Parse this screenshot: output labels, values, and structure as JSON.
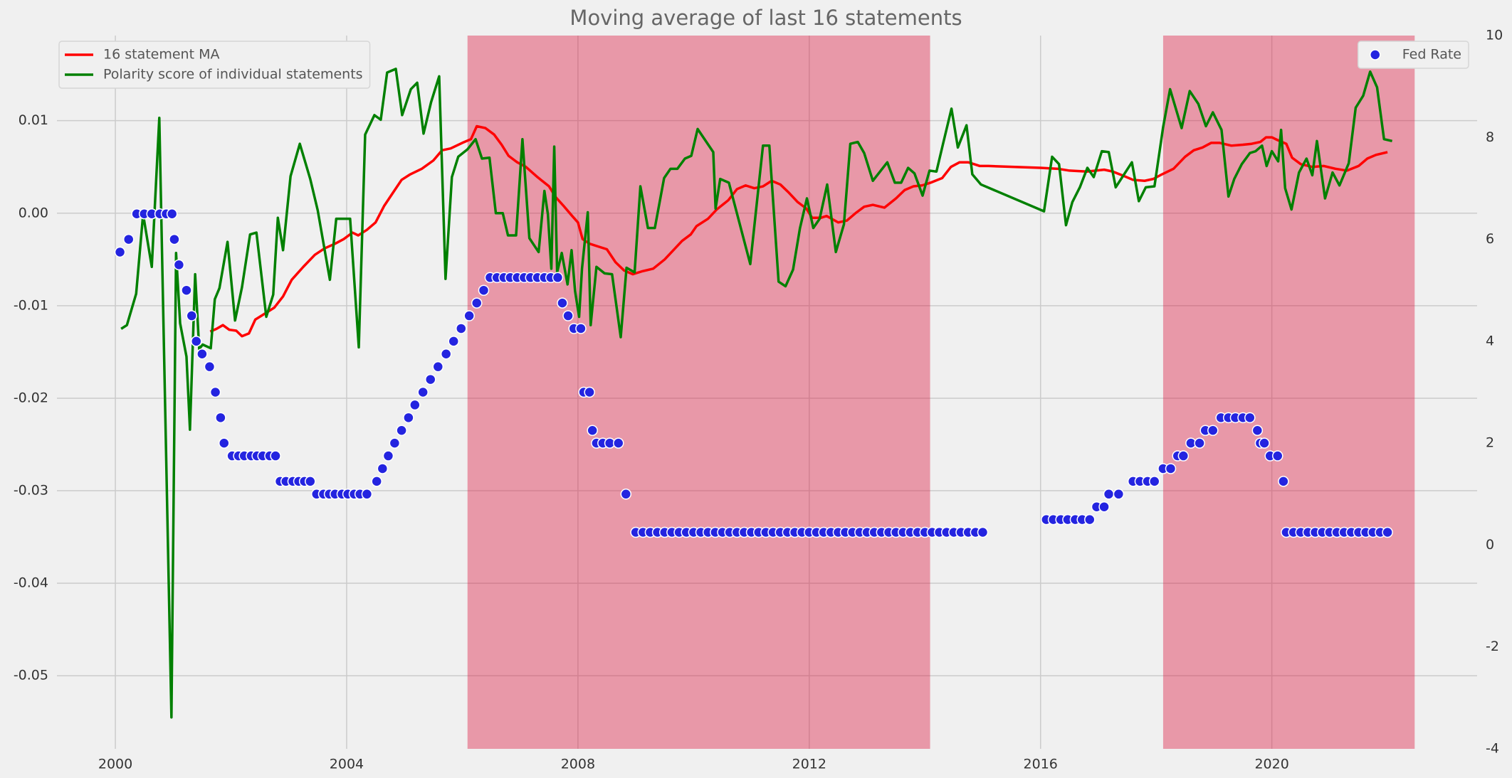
{
  "chart_data": {
    "type": "line",
    "title": "Moving average of last 16 statements",
    "xlim": [
      1998.99,
      2023.55
    ],
    "xticks": [
      2000,
      2004,
      2008,
      2012,
      2016,
      2020
    ],
    "ylim": [
      -0.0579,
      0.0192
    ],
    "yticks": [
      0.01,
      {
        "value": 0,
        "label": "0.00"
      },
      -0.01,
      -0.02,
      -0.03,
      -0.04,
      -0.05
    ],
    "y2lim": [
      -4,
      10
    ],
    "y2ticks": [
      10,
      8,
      6,
      4,
      2,
      0,
      -2,
      -4
    ],
    "grid": true,
    "legend": {
      "y": "upper left",
      "y2": "upper right"
    },
    "spans": [
      {
        "start": 2006.09,
        "end": 2014.09
      },
      {
        "start": 2018.12,
        "end": 2022.47
      }
    ],
    "span_color": "#dc143c",
    "span_alpha": 0.4,
    "series": [
      {
        "name": "16 statement MA",
        "type": "line",
        "color": "#ff0000",
        "x": [
          2001.64,
          2001.75,
          2001.86,
          2001.97,
          2002.09,
          2002.19,
          2002.31,
          2002.42,
          2002.6,
          2002.75,
          2002.9,
          2003.05,
          2003.25,
          2003.45,
          2003.62,
          2003.8,
          2003.95,
          2004.1,
          2004.2,
          2004.35,
          2004.5,
          2004.65,
          2004.8,
          2004.95,
          2005.1,
          2005.3,
          2005.5,
          2005.65,
          2005.8,
          2006,
          2006.15,
          2006.25,
          2006.4,
          2006.55,
          2006.68,
          2006.8,
          2006.95,
          2007.1,
          2007.3,
          2007.5,
          2007.62,
          2007.75,
          2007.9,
          2008,
          2008.08,
          2008.2,
          2008.35,
          2008.5,
          2008.65,
          2008.8,
          2008.95,
          2009.1,
          2009.3,
          2009.5,
          2009.65,
          2009.8,
          2009.95,
          2010.05,
          2010.25,
          2010.4,
          2010.6,
          2010.75,
          2010.9,
          2011.05,
          2011.2,
          2011.35,
          2011.5,
          2011.65,
          2011.8,
          2011.95,
          2012.05,
          2012.2,
          2012.3,
          2012.5,
          2012.65,
          2012.8,
          2012.95,
          2013.1,
          2013.3,
          2013.5,
          2013.65,
          2013.8,
          2013.95,
          2014.1,
          2014.3,
          2014.45,
          2014.6,
          2014.75,
          2014.95,
          2015.1,
          2016,
          2016.3,
          2016.5,
          2016.8,
          2017.1,
          2017.25,
          2017.45,
          2017.6,
          2017.8,
          2017.95,
          2018.1,
          2018.3,
          2018.5,
          2018.65,
          2018.8,
          2018.95,
          2019.1,
          2019.3,
          2019.5,
          2019.65,
          2019.8,
          2019.9,
          2020,
          2020.1,
          2020.25,
          2020.35,
          2020.5,
          2020.7,
          2020.9,
          2021.1,
          2021.3,
          2021.5,
          2021.65,
          2021.8,
          2022
        ],
        "values": [
          -0.0128,
          -0.0125,
          -0.0121,
          -0.0126,
          -0.0127,
          -0.0133,
          -0.013,
          -0.0115,
          -0.0108,
          -0.0102,
          -0.009,
          -0.0072,
          -0.0058,
          -0.0045,
          -0.0038,
          -0.0033,
          -0.0028,
          -0.0021,
          -0.0024,
          -0.0018,
          -0.001,
          0.0008,
          0.0022,
          0.0036,
          0.0042,
          0.0048,
          0.0057,
          0.0068,
          0.007,
          0.0076,
          0.008,
          0.0094,
          0.0092,
          0.0085,
          0.0074,
          0.0062,
          0.0055,
          0.005,
          0.0039,
          0.0029,
          0.0017,
          0.0008,
          -0.0003,
          -0.001,
          -0.0028,
          -0.0033,
          -0.0036,
          -0.0039,
          -0.0053,
          -0.0062,
          -0.0066,
          -0.0063,
          -0.006,
          -0.005,
          -0.004,
          -0.003,
          -0.0023,
          -0.0014,
          -0.0006,
          0.0004,
          0.0014,
          0.0026,
          0.003,
          0.0027,
          0.0029,
          0.0035,
          0.0031,
          0.0022,
          0.0012,
          0.0005,
          -0.0005,
          -0.0005,
          -0.0003,
          -0.001,
          -0.0008,
          0,
          0.0007,
          0.0009,
          0.0006,
          0.0016,
          0.0025,
          0.0029,
          0.003,
          0.0033,
          0.0038,
          0.005,
          0.0055,
          0.0055,
          0.0051,
          0.0051,
          0.0049,
          0.0048,
          0.0046,
          0.0045,
          0.0047,
          0.0045,
          0.004,
          0.0036,
          0.0035,
          0.0037,
          0.0042,
          0.0048,
          0.0061,
          0.0068,
          0.0071,
          0.0076,
          0.0076,
          0.0073,
          0.0074,
          0.0075,
          0.0077,
          0.0082,
          0.0082,
          0.0079,
          0.0075,
          0.006,
          0.0053,
          0.005,
          0.0051,
          0.0048,
          0.0046,
          0.0051,
          0.0059,
          0.0063,
          0.0066
        ]
      },
      {
        "name": "Polarity score of individual statements",
        "type": "line",
        "color": "#008000",
        "x": [
          2000.1,
          2000.2,
          2000.36,
          2000.48,
          2000.63,
          2000.76,
          2000.97,
          2001.05,
          2001.12,
          2001.23,
          2001.29,
          2001.38,
          2001.45,
          2001.51,
          2001.65,
          2001.72,
          2001.8,
          2001.94,
          2002.07,
          2002.19,
          2002.33,
          2002.44,
          2002.61,
          2002.73,
          2002.81,
          2002.9,
          2003.03,
          2003.19,
          2003.37,
          2003.5,
          2003.71,
          2003.82,
          2004.06,
          2004.21,
          2004.32,
          2004.48,
          2004.59,
          2004.7,
          2004.85,
          2004.96,
          2005.11,
          2005.22,
          2005.33,
          2005.46,
          2005.6,
          2005.71,
          2005.82,
          2005.93,
          2006.09,
          2006.23,
          2006.34,
          2006.47,
          2006.58,
          2006.7,
          2006.79,
          2006.93,
          2007.04,
          2007.16,
          2007.32,
          2007.42,
          2007.48,
          2007.54,
          2007.59,
          2007.64,
          2007.72,
          2007.82,
          2007.89,
          2007.95,
          2008.02,
          2008.07,
          2008.17,
          2008.22,
          2008.32,
          2008.46,
          2008.59,
          2008.74,
          2008.84,
          2008.98,
          2009.08,
          2009.21,
          2009.33,
          2009.49,
          2009.6,
          2009.72,
          2009.85,
          2009.96,
          2010.07,
          2010.34,
          2010.38,
          2010.46,
          2010.61,
          2010.98,
          2011.2,
          2011.31,
          2011.47,
          2011.59,
          2011.72,
          2011.84,
          2011.96,
          2012.07,
          2012.18,
          2012.31,
          2012.46,
          2012.6,
          2012.71,
          2012.84,
          2012.95,
          2013.1,
          2013.35,
          2013.48,
          2013.59,
          2013.71,
          2013.82,
          2013.96,
          2014.08,
          2014.2,
          2014.31,
          2014.46,
          2014.57,
          2014.72,
          2014.82,
          2014.97,
          2016.06,
          2016.2,
          2016.32,
          2016.44,
          2016.55,
          2016.68,
          2016.81,
          2016.92,
          2017.06,
          2017.18,
          2017.3,
          2017.58,
          2017.7,
          2017.82,
          2017.97,
          2018.12,
          2018.24,
          2018.44,
          2018.58,
          2018.73,
          2018.86,
          2018.98,
          2019.13,
          2019.25,
          2019.35,
          2019.48,
          2019.62,
          2019.72,
          2019.83,
          2019.91,
          2020,
          2020.11,
          2020.16,
          2020.23,
          2020.34,
          2020.47,
          2020.6,
          2020.7,
          2020.78,
          2020.92,
          2021.05,
          2021.17,
          2021.33,
          2021.45,
          2021.58,
          2021.7,
          2021.82,
          2021.94,
          2022.08
        ],
        "values": [
          -0.0125,
          -0.0121,
          -0.0087,
          -0.0001,
          -0.0058,
          0.0103,
          -0.0545,
          -0.0043,
          -0.0119,
          -0.0155,
          -0.0234,
          -0.0066,
          -0.0147,
          -0.0142,
          -0.0146,
          -0.0093,
          -0.0081,
          -0.0031,
          -0.0116,
          -0.008,
          -0.0023,
          -0.0021,
          -0.0112,
          -0.0088,
          -0.0005,
          -0.004,
          0.004,
          0.0075,
          0.0037,
          0.0003,
          -0.0072,
          -0.0006,
          -0.0006,
          -0.0145,
          0.0085,
          0.0106,
          0.0101,
          0.0152,
          0.0156,
          0.0106,
          0.0134,
          0.0141,
          0.0086,
          0.012,
          0.0148,
          -0.0071,
          0.0039,
          0.0061,
          0.0069,
          0.008,
          0.0059,
          0.006,
          0,
          0,
          -0.0024,
          -0.0024,
          0.008,
          -0.0027,
          -0.0042,
          0.0024,
          -0.0001,
          -0.006,
          0.0072,
          -0.0064,
          -0.0043,
          -0.0077,
          -0.004,
          -0.0084,
          -0.0112,
          -0.006,
          0.0001,
          -0.0121,
          -0.0058,
          -0.0065,
          -0.0066,
          -0.0134,
          -0.0059,
          -0.0064,
          0.0029,
          -0.0016,
          -0.0016,
          0.0038,
          0.0048,
          0.0048,
          0.0059,
          0.0062,
          0.0091,
          0.0066,
          0.0005,
          0.0037,
          0.0033,
          -0.0055,
          0.0073,
          0.0073,
          -0.0074,
          -0.0079,
          -0.0061,
          -0.0016,
          0.0016,
          -0.0016,
          -0.0006,
          0.0031,
          -0.0042,
          -0.0012,
          0.0075,
          0.0077,
          0.0065,
          0.0035,
          0.0055,
          0.0033,
          0.0033,
          0.0049,
          0.0043,
          0.0019,
          0.0046,
          0.0045,
          0.0074,
          0.0113,
          0.0071,
          0.0095,
          0.0042,
          0.0031,
          0.0002,
          0.0061,
          0.0053,
          -0.0013,
          0.0012,
          0.0028,
          0.0049,
          0.0039,
          0.0067,
          0.0066,
          0.0028,
          0.0055,
          0.0013,
          0.0028,
          0.0029,
          0.0093,
          0.0134,
          0.0092,
          0.0132,
          0.0118,
          0.0094,
          0.0109,
          0.009,
          0.0018,
          0.0037,
          0.0053,
          0.0065,
          0.0067,
          0.0073,
          0.0051,
          0.0067,
          0.0056,
          0.009,
          0.0027,
          0.0004,
          0.0044,
          0.0059,
          0.0041,
          0.0078,
          0.0016,
          0.0044,
          0.003,
          0.0054,
          0.0114,
          0.0127,
          0.0153,
          0.0136,
          0.008,
          0.0078
        ]
      },
      {
        "name": "Fed Rate",
        "type": "scatter",
        "axis": "y2",
        "color": "#2424e0",
        "x": [
          2000.08,
          2000.23,
          2000.37,
          2000.5,
          2000.63,
          2000.77,
          2000.88,
          2000.98,
          2001.02,
          2001.1,
          2001.23,
          2001.32,
          2001.4,
          2001.5,
          2001.63,
          2001.73,
          2001.82,
          2001.88,
          2002.02,
          2002.13,
          2002.23,
          2002.35,
          2002.45,
          2002.55,
          2002.67,
          2002.77,
          2002.85,
          2002.95,
          2003.07,
          2003.17,
          2003.27,
          2003.37,
          2003.48,
          2003.6,
          2003.7,
          2003.8,
          2003.92,
          2004.02,
          2004.13,
          2004.23,
          2004.35,
          2004.52,
          2004.62,
          2004.72,
          2004.83,
          2004.95,
          2005.07,
          2005.18,
          2005.32,
          2005.45,
          2005.58,
          2005.72,
          2005.85,
          2005.98,
          2006.12,
          2006.25,
          2006.37,
          2006.48,
          2006.6,
          2006.72,
          2006.83,
          2006.95,
          2007.07,
          2007.18,
          2007.3,
          2007.42,
          2007.53,
          2007.65,
          2007.73,
          2007.83,
          2007.93,
          2008.05,
          2008.1,
          2008.2,
          2008.25,
          2008.32,
          2008.43,
          2008.55,
          2008.7,
          2008.83,
          2009,
          2009.125,
          2009.25,
          2009.375,
          2009.5,
          2009.625,
          2009.75,
          2009.875,
          2010,
          2010.125,
          2010.25,
          2010.375,
          2010.5,
          2010.625,
          2010.75,
          2010.875,
          2011,
          2011.125,
          2011.25,
          2011.375,
          2011.5,
          2011.625,
          2011.75,
          2011.875,
          2012,
          2012.125,
          2012.25,
          2012.375,
          2012.5,
          2012.625,
          2012.75,
          2012.875,
          2013,
          2013.125,
          2013.25,
          2013.375,
          2013.5,
          2013.625,
          2013.75,
          2013.875,
          2014,
          2014.125,
          2014.25,
          2014.375,
          2014.5,
          2014.625,
          2014.75,
          2014.875,
          2015,
          2016.1,
          2016.22,
          2016.35,
          2016.47,
          2016.6,
          2016.72,
          2016.85,
          2016.97,
          2017.1,
          2017.18,
          2017.35,
          2017.6,
          2017.72,
          2017.85,
          2017.97,
          2018.12,
          2018.25,
          2018.37,
          2018.47,
          2018.6,
          2018.75,
          2018.85,
          2018.98,
          2019.12,
          2019.25,
          2019.37,
          2019.5,
          2019.62,
          2019.75,
          2019.8,
          2019.87,
          2019.97,
          2020.1,
          2020.2,
          2020.25,
          2020.375,
          2020.5,
          2020.625,
          2020.75,
          2020.875,
          2021,
          2021.125,
          2021.25,
          2021.375,
          2021.5,
          2021.625,
          2021.75,
          2021.875,
          2022
        ],
        "values": [
          5.75,
          6,
          6.5,
          6.5,
          6.5,
          6.5,
          6.5,
          6.5,
          6,
          5.5,
          5,
          4.5,
          4,
          3.75,
          3.5,
          3,
          2.5,
          2,
          1.75,
          1.75,
          1.75,
          1.75,
          1.75,
          1.75,
          1.75,
          1.75,
          1.25,
          1.25,
          1.25,
          1.25,
          1.25,
          1.25,
          1,
          1,
          1,
          1,
          1,
          1,
          1,
          1,
          1,
          1.25,
          1.5,
          1.75,
          2,
          2.25,
          2.5,
          2.75,
          3,
          3.25,
          3.5,
          3.75,
          4,
          4.25,
          4.5,
          4.75,
          5,
          5.25,
          5.25,
          5.25,
          5.25,
          5.25,
          5.25,
          5.25,
          5.25,
          5.25,
          5.25,
          5.25,
          4.75,
          4.5,
          4.25,
          4.25,
          3,
          3,
          2.25,
          2,
          2,
          2,
          2,
          1,
          0.25,
          0.25,
          0.25,
          0.25,
          0.25,
          0.25,
          0.25,
          0.25,
          0.25,
          0.25,
          0.25,
          0.25,
          0.25,
          0.25,
          0.25,
          0.25,
          0.25,
          0.25,
          0.25,
          0.25,
          0.25,
          0.25,
          0.25,
          0.25,
          0.25,
          0.25,
          0.25,
          0.25,
          0.25,
          0.25,
          0.25,
          0.25,
          0.25,
          0.25,
          0.25,
          0.25,
          0.25,
          0.25,
          0.25,
          0.25,
          0.25,
          0.25,
          0.25,
          0.25,
          0.25,
          0.25,
          0.25,
          0.25,
          0.25,
          0.5,
          0.5,
          0.5,
          0.5,
          0.5,
          0.5,
          0.5,
          0.75,
          0.75,
          1,
          1,
          1.25,
          1.25,
          1.25,
          1.25,
          1.5,
          1.5,
          1.75,
          1.75,
          2,
          2,
          2.25,
          2.25,
          2.5,
          2.5,
          2.5,
          2.5,
          2.5,
          2.25,
          2,
          2,
          1.75,
          1.75,
          1.25,
          0.25,
          0.25,
          0.25,
          0.25,
          0.25,
          0.25,
          0.25,
          0.25,
          0.25,
          0.25,
          0.25,
          0.25,
          0.25,
          0.25,
          0.25
        ]
      }
    ]
  }
}
